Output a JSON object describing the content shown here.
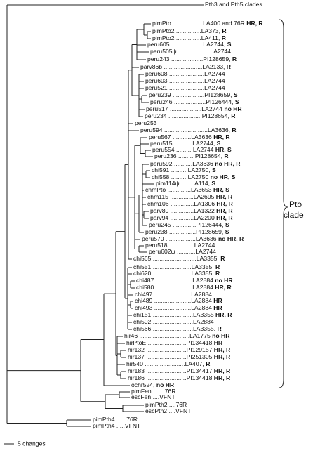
{
  "tree": {
    "leaves": [
      {
        "name": "Pth3 and Pth5 clades"
      },
      {
        "name": "pimPto ",
        "accession": "..................LA400 and 76R ",
        "phenotype": "HR, R"
      },
      {
        "name": "pimPto2 ",
        "accession": "...............LA373, ",
        "phenotype": "R"
      },
      {
        "name": "pimPto2 ",
        "accession": "...............LA411, ",
        "phenotype": "R"
      },
      {
        "name": "peru605 ",
        "accession": "...................LA2744, ",
        "phenotype": "S"
      },
      {
        "name": "peru505ψ ",
        "accession": "...................LA2744"
      },
      {
        "name": "peru243 ",
        "accession": "...................PI128659, ",
        "phenotype": "R"
      },
      {
        "name": "parv86b ",
        "accession": ".......................LA2133, ",
        "phenotype": "R"
      },
      {
        "name": "peru608 ",
        "accession": ".....................LA2744"
      },
      {
        "name": "peru603 ",
        "accession": ".....................LA2744"
      },
      {
        "name": "peru521 ",
        "accession": ".....................LA2744"
      },
      {
        "name": "peru239 ",
        "accession": "...................PI128659, ",
        "phenotype": "S"
      },
      {
        "name": "peru246 ",
        "accession": "...................PI126444, ",
        "phenotype": "S"
      },
      {
        "name": "peru517 ",
        "accession": "...................LA2744 ",
        "phenotype": "no HR"
      },
      {
        "name": "peru234 ",
        "accession": "....................PI128654, ",
        "phenotype": "R"
      },
      {
        "name": "peru253"
      },
      {
        "name": "peru594 ",
        "accession": "..........................LA3636, ",
        "phenotype": "R"
      },
      {
        "name": "peru567 ",
        "accession": "...........LA3636 ",
        "phenotype": "HR, R"
      },
      {
        "name": "peru515 ",
        "accession": "...........LA2744, ",
        "phenotype": "S"
      },
      {
        "name": "peru554 ",
        "accession": "..........LA2744 ",
        "phenotype": "HR, S"
      },
      {
        "name": "peru236 ",
        "accession": "..........PI128654, ",
        "phenotype": "R"
      },
      {
        "name": "peru592 ",
        "accession": "...........LA3636 ",
        "phenotype": "no HR, R"
      },
      {
        "name": "chi591 ",
        "accession": "..........LA2750, ",
        "phenotype": "S"
      },
      {
        "name": "chi558 ",
        "accession": "..........LA2750 ",
        "phenotype": "no HR, S"
      },
      {
        "name": "pim114ψ ",
        "accession": "......LA114, ",
        "phenotype": "S"
      },
      {
        "name": "chmPto ",
        "accession": "..............LA3653 ",
        "phenotype": "HR, S"
      },
      {
        "name": "chm115 ",
        "accession": "..............LA2695 ",
        "phenotype": "HR, R"
      },
      {
        "name": "chm106 ",
        "accession": "..............LA1306 ",
        "phenotype": "HR, R"
      },
      {
        "name": "parv80 ",
        "accession": "..............LA1322 ",
        "phenotype": "HR, R"
      },
      {
        "name": "parv94 ",
        "accession": "..............LA2200 ",
        "phenotype": "HR, R"
      },
      {
        "name": "peru245 ",
        "accession": "..............PI126444, ",
        "phenotype": "S"
      },
      {
        "name": "peru238 ",
        "accession": "................PI128659, ",
        "phenotype": "S"
      },
      {
        "name": "peru570 ",
        "accession": "..................LA3636 ",
        "phenotype": "no HR, R"
      },
      {
        "name": "peru518 ",
        "accession": "...............LA2744"
      },
      {
        "name": "peru602ψ ",
        "accession": "...........LA2744"
      },
      {
        "name": "chi565 ",
        "accession": "..........................LA3355, ",
        "phenotype": "R"
      },
      {
        "name": "chi551 ",
        "accession": ".......................LA3355, ",
        "phenotype": "R"
      },
      {
        "name": "chi620 ",
        "accession": ".......................LA3355, ",
        "phenotype": "R"
      },
      {
        "name": "chi487 ",
        "accession": "......................LA2884 ",
        "phenotype": "no HR"
      },
      {
        "name": "chi580 ",
        "accession": "......................LA2884 ",
        "phenotype": "HR, R"
      },
      {
        "name": "chi497 ",
        "accession": "......................LA2884"
      },
      {
        "name": "chi489 ",
        "accession": "......................LA2884 ",
        "phenotype": "HR"
      },
      {
        "name": "chi493 ",
        "accession": "......................LA2884 ",
        "phenotype": "HR"
      },
      {
        "name": "chi151 ",
        "accession": "........................LA3355 ",
        "phenotype": "HR, R"
      },
      {
        "name": "chi502 ",
        "accession": "........................LA2884"
      },
      {
        "name": "chi566 ",
        "accession": "........................LA3355, ",
        "phenotype": "R"
      },
      {
        "name": "hir46 ",
        "accession": "..............................LA1775 ",
        "phenotype": "no HR"
      },
      {
        "name": "hirPtoE ",
        "accession": ".......................PI134418 ",
        "phenotype": "HR"
      },
      {
        "name": "hir132 ",
        "accession": "........................PI129157 ",
        "phenotype": "HR, R"
      },
      {
        "name": "hir137 ",
        "accession": "........................PI251305 ",
        "phenotype": "HR, R"
      },
      {
        "name": "hir540 ",
        "accession": "........................LA407, ",
        "phenotype": "R"
      },
      {
        "name": "hir183 ",
        "accession": "........................PI134417 ",
        "phenotype": "HR, R"
      },
      {
        "name": "hir186 ",
        "accession": "........................PI134418 ",
        "phenotype": "HR, R"
      },
      {
        "name": "ochr524, ",
        "phenotype": "no HR"
      },
      {
        "name": "pimFen ",
        "accession": ".......76R"
      },
      {
        "name": "escFen ",
        "accession": "....VFNT"
      },
      {
        "name": "pimPth2 ",
        "accession": "....76R"
      },
      {
        "name": "escPth2 ",
        "accession": "....VFNT"
      },
      {
        "name": "pimPth4 ",
        "accession": "......76R"
      },
      {
        "name": "pimPth4 ",
        "accession": ".....VFNT"
      }
    ],
    "clade_label": [
      "Pto",
      "clade"
    ],
    "scale_label": "5 changes"
  }
}
